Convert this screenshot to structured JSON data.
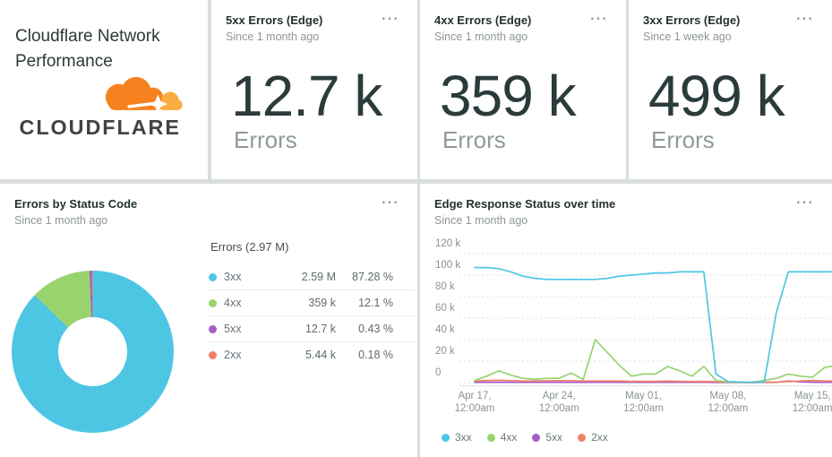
{
  "icons": {
    "menu": "⋯"
  },
  "title_card": {
    "title": "Cloudflare Network Performance",
    "logo_wordmark": "CLOUDFLARE"
  },
  "kpi_cards": [
    {
      "title": "5xx Errors (Edge)",
      "subtitle": "Since 1 month ago",
      "value": "12.7 k",
      "unit": "Errors"
    },
    {
      "title": "4xx Errors (Edge)",
      "subtitle": "Since 1 month ago",
      "value": "359 k",
      "unit": "Errors"
    },
    {
      "title": "3xx Errors (Edge)",
      "subtitle": "Since 1 week ago",
      "value": "499 k",
      "unit": "Errors"
    }
  ],
  "donut_card": {
    "title": "Errors by Status Code",
    "subtitle": "Since 1 month ago"
  },
  "chart_card": {
    "title": "Edge Response Status over time",
    "subtitle": "Since 1 month ago"
  },
  "colors": {
    "blue_3xx": "#4dc6e4",
    "green_4xx": "#98d36e",
    "purple_5xx": "#a55ec7",
    "orange_2xx": "#f28069",
    "logo_orange": "#f6821f",
    "logo_light_orange": "#fbad41"
  },
  "chart_data": [
    {
      "type": "pie",
      "title": "Errors by Status Code",
      "legend_title": "Errors (2.97 M)",
      "total_display": "2.97 M",
      "donut": true,
      "slices": [
        {
          "label": "3xx",
          "value": 2590000,
          "value_display": "2.59 M",
          "percent": 87.28,
          "percent_display": "87.28 %",
          "color": "#4dc6e4"
        },
        {
          "label": "4xx",
          "value": 359000,
          "value_display": "359 k",
          "percent": 12.1,
          "percent_display": "12.1 %",
          "color": "#98d36e"
        },
        {
          "label": "5xx",
          "value": 12700,
          "value_display": "12.7 k",
          "percent": 0.43,
          "percent_display": "0.43 %",
          "color": "#a55ec7"
        },
        {
          "label": "2xx",
          "value": 5440,
          "value_display": "5.44 k",
          "percent": 0.18,
          "percent_display": "0.18 %",
          "color": "#f28069"
        }
      ]
    },
    {
      "type": "line",
      "title": "Edge Response Status over time",
      "x_start": "Apr 17, 12:00am",
      "x_interval": "1 day",
      "x_tick_labels": [
        [
          "Apr 17,",
          "12:00am"
        ],
        [
          "Apr 24,",
          "12:00am"
        ],
        [
          "May 01,",
          "12:00am"
        ],
        [
          "May 08,",
          "12:00am"
        ],
        [
          "May 15,",
          "12:00am"
        ]
      ],
      "y_ticks": [
        "120 k",
        "100 k",
        "80 k",
        "60 k",
        "40 k",
        "20 k",
        "0"
      ],
      "ylim_k": [
        0,
        120
      ],
      "grid": "dotted horizontal",
      "legend_position": "bottom-left",
      "series": [
        {
          "name": "3xx",
          "color": "#4dc6e4",
          "values_k": [
            107,
            107,
            106,
            103,
            99,
            97,
            96,
            96,
            96,
            96,
            96,
            97,
            99,
            100,
            101,
            102,
            102,
            103,
            103,
            103,
            8,
            1,
            0.5,
            0.4,
            0.5,
            65,
            103,
            103,
            103,
            103,
            103
          ]
        },
        {
          "name": "4xx",
          "color": "#98d36e",
          "values_k": [
            2,
            6,
            11,
            7,
            4,
            3,
            4,
            4,
            9,
            3,
            40,
            28,
            16,
            6,
            8,
            8,
            15,
            11,
            6,
            15,
            2,
            0.5,
            0.3,
            0.5,
            2,
            4,
            8,
            6,
            5,
            14,
            16
          ]
        },
        {
          "name": "5xx",
          "color": "#a55ec7",
          "values_k": [
            0.3,
            0.3,
            0.3,
            0.3,
            0.3,
            0.3,
            0.3,
            0.3,
            0.3,
            0.3,
            0.3,
            0.3,
            0.3,
            0.3,
            0.3,
            0.3,
            0.3,
            0.3,
            0.3,
            0.3,
            0.2,
            0.1,
            0.1,
            0.1,
            0.2,
            0.3,
            1.5,
            0.8,
            0.3,
            0.3,
            0.3
          ]
        },
        {
          "name": "2xx",
          "color": "#f28069",
          "values_k": [
            1.5,
            2,
            2.2,
            1.8,
            1.5,
            1.5,
            1.8,
            1.8,
            1.8,
            1.5,
            1.5,
            1.5,
            1.5,
            1.2,
            1.2,
            1.2,
            1.5,
            1.2,
            1,
            1.2,
            0.8,
            0.3,
            0.2,
            0.2,
            0.3,
            0.5,
            1,
            1.5,
            2,
            1.5,
            1.5
          ]
        }
      ]
    }
  ]
}
